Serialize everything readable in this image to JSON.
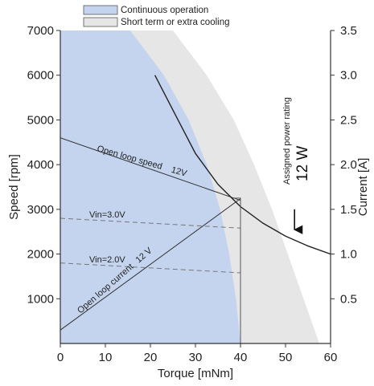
{
  "chart_data": {
    "type": "line",
    "legend": {
      "placement": "top",
      "entries": [
        {
          "label": "Continuous operation",
          "color": "#c4d4ee"
        },
        {
          "label": "Short term or extra cooling",
          "color": "#e6e6e6"
        }
      ]
    },
    "xlabel": "Torque [mNm]",
    "ylabel_left": "Speed [rpm]",
    "ylabel_right": "Current [A]",
    "xlim": [
      0,
      60
    ],
    "ylim_left": [
      0,
      7000
    ],
    "ylim_right": [
      0,
      3.5
    ],
    "x_ticks": [
      "0",
      "10",
      "20",
      "30",
      "40",
      "50",
      "60"
    ],
    "y_left_ticks": [
      "1000",
      "2000",
      "3000",
      "4000",
      "5000",
      "6000",
      "7000"
    ],
    "y_right_ticks": [
      "0.5",
      "1.0",
      "1.5",
      "2.0",
      "2.5",
      "3.0",
      "3.5"
    ],
    "regions": [
      {
        "name": "Short term or extra cooling",
        "color": "#e6e6e6",
        "boundary": [
          [
            25,
            7000
          ],
          [
            32.5,
            6000
          ],
          [
            38.5,
            5000
          ],
          [
            43,
            4000
          ],
          [
            47,
            3000
          ],
          [
            50.5,
            2000
          ],
          [
            54,
            1000
          ],
          [
            57.5,
            0
          ]
        ]
      },
      {
        "name": "Continuous operation",
        "color": "#c4d4ee",
        "boundary": [
          [
            15.5,
            7000
          ],
          [
            23,
            6000
          ],
          [
            28.5,
            5000
          ],
          [
            32.5,
            4000
          ],
          [
            35.5,
            3000
          ],
          [
            37.5,
            2000
          ],
          [
            39,
            1000
          ],
          [
            40,
            0
          ]
        ]
      }
    ],
    "series": [
      {
        "name": "Open loop speed",
        "label_suffix": "12V",
        "axis": "left",
        "style": "solid",
        "x": [
          0,
          40
        ],
        "y": [
          4600,
          3200
        ]
      },
      {
        "name": "Open loop current",
        "label_suffix": "12 V",
        "axis": "right",
        "style": "solid",
        "x": [
          0,
          40
        ],
        "y": [
          0.15,
          1.62
        ]
      },
      {
        "name": "Vin=3.0V",
        "axis": "left",
        "style": "dashed",
        "x": [
          0,
          40
        ],
        "y": [
          2800,
          2580
        ]
      },
      {
        "name": "Vin=2.0V",
        "axis": "left",
        "style": "dashed",
        "x": [
          0,
          40
        ],
        "y": [
          1800,
          1580
        ]
      },
      {
        "name": "Assigned power rating",
        "axis": "left",
        "style": "solid",
        "x": [
          21,
          25,
          30,
          35,
          40,
          45,
          50,
          55,
          60
        ],
        "y": [
          6000,
          5220,
          4250,
          3560,
          3060,
          2690,
          2400,
          2180,
          2000
        ]
      }
    ],
    "limit_line": {
      "x": [
        40,
        40
      ],
      "y": [
        0,
        3250
      ]
    },
    "annotations": {
      "power_rating_label": "Assigned power rating",
      "power_value": "12 W",
      "arrow_at": {
        "x": 52,
        "y_from": 3000,
        "y_to": 2400
      }
    }
  }
}
